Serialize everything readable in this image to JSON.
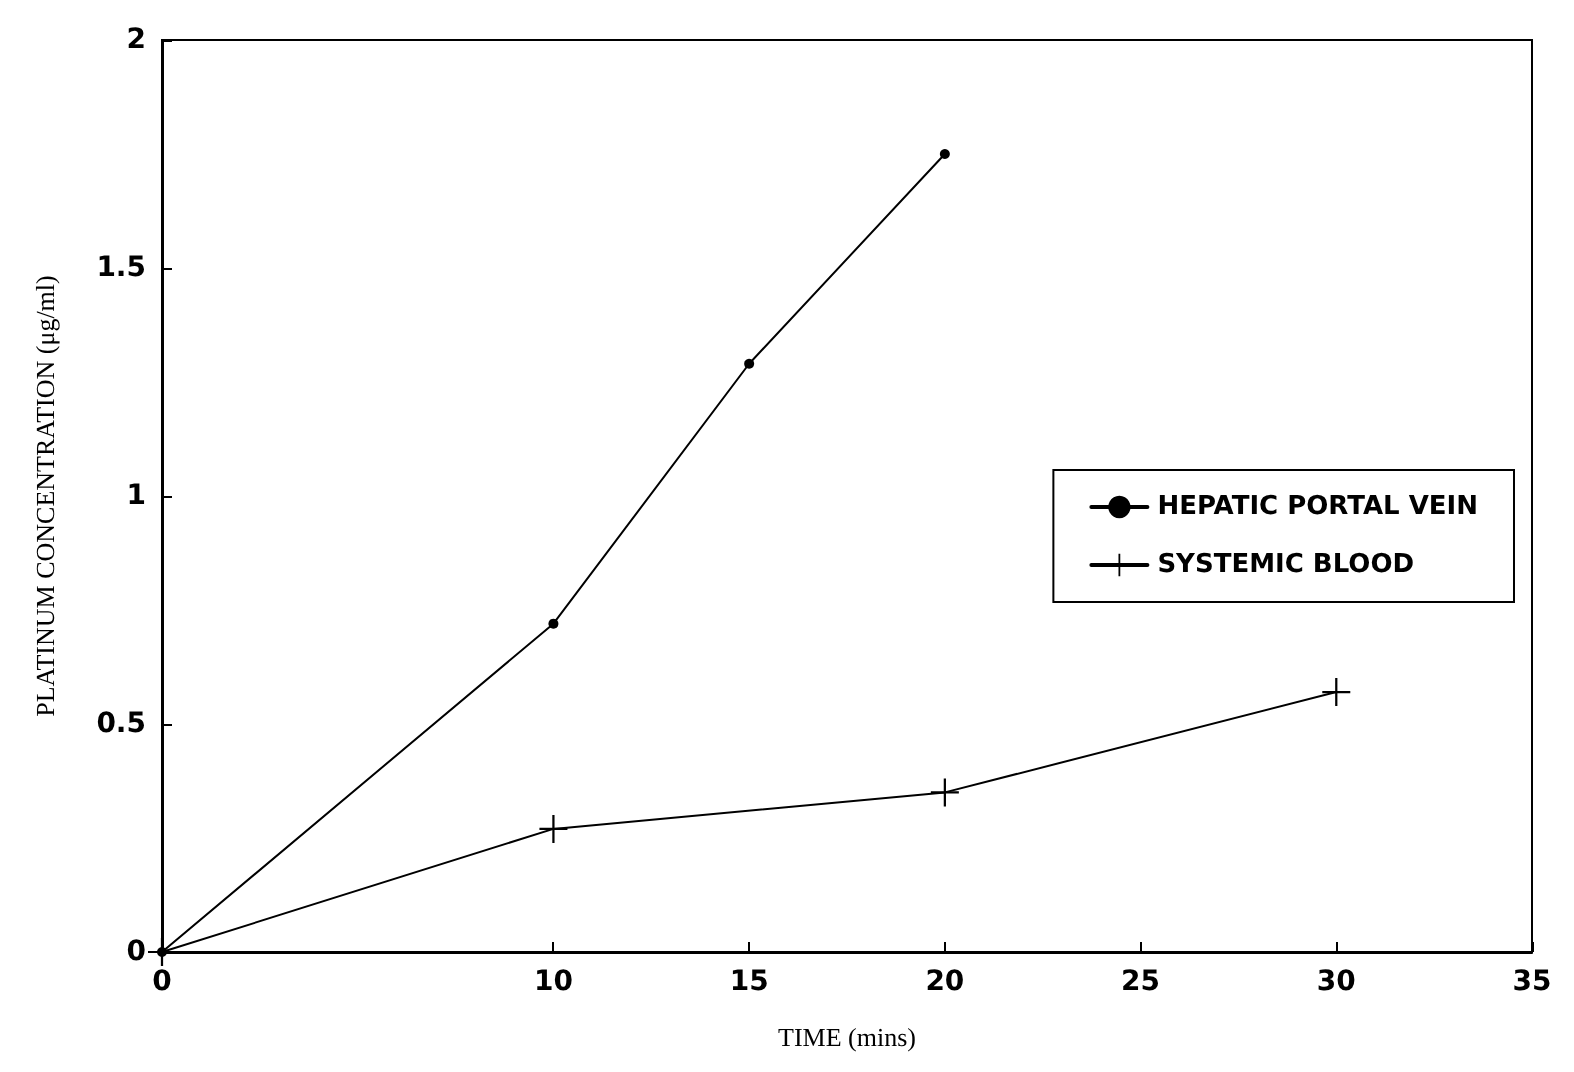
{
  "chart_data": {
    "type": "line",
    "xlabel": "TIME (mins)",
    "ylabel": "PLATINUM CONCENTRATION (μg/ml)",
    "xlim": [
      0,
      35
    ],
    "xticks": [
      0,
      10,
      15,
      20,
      25,
      30,
      35
    ],
    "ylim": [
      0,
      2
    ],
    "yticks": [
      0,
      0.5,
      1,
      1.5,
      2
    ],
    "grid": false,
    "legend": "right",
    "line_style": "solid",
    "series": [
      {
        "name": "HEPATIC PORTAL VEIN",
        "color": "#000000",
        "marker": "circle",
        "x": [
          0,
          10,
          15,
          20
        ],
        "values": [
          0,
          0.72,
          1.29,
          1.75
        ]
      },
      {
        "name": "SYSTEMIC BLOOD",
        "color": "#000000",
        "marker": "cross",
        "x": [
          0,
          10,
          20,
          30
        ],
        "values": [
          0,
          0.27,
          0.35,
          0.57
        ]
      }
    ]
  }
}
